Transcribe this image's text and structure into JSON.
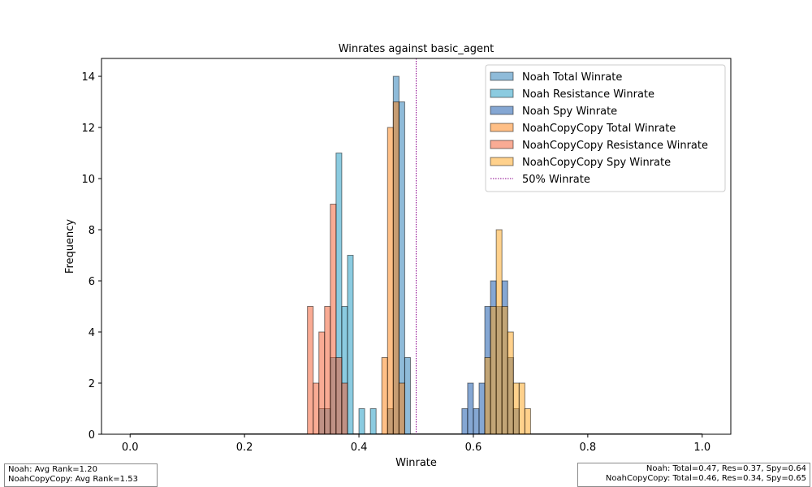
{
  "chart_data": {
    "type": "bar",
    "title": "Winrates against basic_agent",
    "xlabel": "Winrate",
    "ylabel": "Frequency",
    "xlim": [
      -0.05,
      1.05
    ],
    "ylim": [
      0,
      14.7
    ],
    "bin_width": 0.01,
    "xticks": [
      0.0,
      0.2,
      0.4,
      0.6,
      0.8,
      1.0
    ],
    "xtick_labels": [
      "0.0",
      "0.2",
      "0.4",
      "0.6",
      "0.8",
      "1.0"
    ],
    "yticks": [
      0,
      2,
      4,
      6,
      8,
      10,
      12,
      14
    ],
    "ytick_labels": [
      "0",
      "2",
      "4",
      "6",
      "8",
      "10",
      "12",
      "14"
    ],
    "legend_position": "top-right",
    "reference_line": {
      "x": 0.5,
      "label": "50% Winrate",
      "color": "#8b008b"
    },
    "series": [
      {
        "name": "Noah Total Winrate",
        "color": "#1f77b4",
        "bins": [
          [
            0.45,
            1
          ],
          [
            0.46,
            14
          ],
          [
            0.47,
            13
          ],
          [
            0.48,
            3
          ]
        ]
      },
      {
        "name": "Noah Resistance Winrate",
        "color": "#1798c2",
        "bins": [
          [
            0.33,
            1
          ],
          [
            0.34,
            1
          ],
          [
            0.35,
            3
          ],
          [
            0.36,
            11
          ],
          [
            0.37,
            5
          ],
          [
            0.38,
            7
          ],
          [
            0.4,
            1
          ],
          [
            0.42,
            1
          ]
        ]
      },
      {
        "name": "Noah Spy Winrate",
        "color": "#0b4fa8",
        "bins": [
          [
            0.58,
            1
          ],
          [
            0.59,
            2
          ],
          [
            0.6,
            1
          ],
          [
            0.61,
            2
          ],
          [
            0.62,
            5
          ],
          [
            0.63,
            6
          ],
          [
            0.64,
            5
          ],
          [
            0.65,
            6
          ],
          [
            0.66,
            3
          ],
          [
            0.67,
            1
          ]
        ]
      },
      {
        "name": "NoahCopyCopy Total Winrate",
        "color": "#ff7f0e",
        "bins": [
          [
            0.44,
            3
          ],
          [
            0.45,
            12
          ],
          [
            0.46,
            13
          ],
          [
            0.47,
            2
          ]
        ]
      },
      {
        "name": "NoahCopyCopy Resistance Winrate",
        "color": "#f3582a",
        "bins": [
          [
            0.31,
            5
          ],
          [
            0.32,
            2
          ],
          [
            0.33,
            4
          ],
          [
            0.34,
            5
          ],
          [
            0.35,
            9
          ],
          [
            0.36,
            3
          ],
          [
            0.37,
            2
          ]
        ]
      },
      {
        "name": "NoahCopyCopy Spy Winrate",
        "color": "#ffa319",
        "bins": [
          [
            0.62,
            3
          ],
          [
            0.63,
            5
          ],
          [
            0.64,
            8
          ],
          [
            0.65,
            5
          ],
          [
            0.66,
            4
          ],
          [
            0.67,
            2
          ],
          [
            0.68,
            2
          ],
          [
            0.69,
            1
          ]
        ]
      }
    ]
  },
  "info_left": {
    "line1": "Noah: Avg Rank=1.20",
    "line2": "NoahCopyCopy: Avg Rank=1.53"
  },
  "info_right": {
    "line1": "Noah: Total=0.47, Res=0.37, Spy=0.64",
    "line2": "NoahCopyCopy: Total=0.46, Res=0.34, Spy=0.65"
  }
}
